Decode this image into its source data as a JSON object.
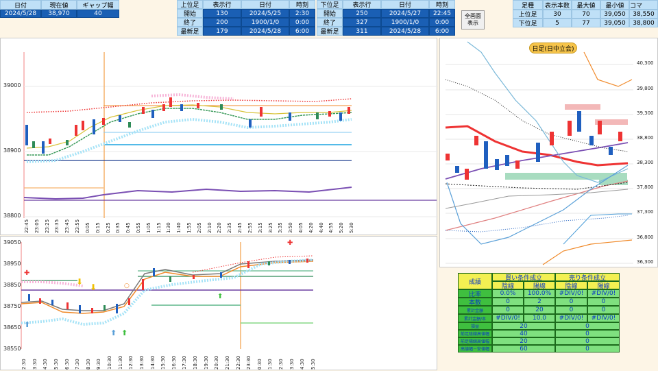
{
  "top_left": {
    "headers": [
      "日付",
      "現在値",
      "ギャップ幅"
    ],
    "values": [
      "2024/5/28",
      "38,970",
      "40"
    ]
  },
  "upper_table": {
    "headers": [
      "上位足",
      "表示行",
      "日付",
      "時刻"
    ],
    "rows": [
      [
        "開始",
        "130",
        "2024/5/25",
        "2:30"
      ],
      [
        "終了",
        "200",
        "1900/1/0",
        "0:00"
      ],
      [
        "最新足",
        "179",
        "2024/5/28",
        "6:00"
      ]
    ]
  },
  "lower_table": {
    "headers": [
      "下位足",
      "表示行",
      "日付",
      "時刻"
    ],
    "rows": [
      [
        "開始",
        "250",
        "2024/5/27",
        "22:45"
      ],
      [
        "終了",
        "327",
        "1900/1/0",
        "0:00"
      ],
      [
        "最新足",
        "311",
        "2024/5/28",
        "6:00"
      ]
    ]
  },
  "full_button": {
    "line1": "全画面",
    "line2": "表示"
  },
  "right_table": {
    "headers": [
      "足種",
      "表示本数",
      "最大値",
      "最小値",
      "コマ"
    ],
    "rows": [
      [
        "上位足",
        "30",
        "70",
        "39,050",
        "38,550"
      ],
      [
        "下位足",
        "5",
        "77",
        "39,050",
        "38,800"
      ]
    ]
  },
  "top_chart": {
    "y_ticks": [
      "39000",
      "38900",
      "38800"
    ],
    "x_ticks": [
      "22:45",
      "23:05",
      "23:25",
      "23:35",
      "23:45",
      "23:55",
      "0:05",
      "0:15",
      "0:25",
      "0:35",
      "0:45",
      "0:55",
      "1:05",
      "1:15",
      "1:30",
      "1:40",
      "1:55",
      "2:05",
      "2:10",
      "2:20",
      "2:35",
      "2:45",
      "2:55",
      "3:15",
      "3:25",
      "3:35",
      "3:50",
      "4:05",
      "4:20",
      "4:40",
      "4:55",
      "5:20",
      "5:30"
    ]
  },
  "bottom_chart": {
    "y_ticks": [
      "39050",
      "38950",
      "38850",
      "38750",
      "38650",
      "38550"
    ],
    "x_ticks": [
      "2:30",
      "3:30",
      "4:30",
      "5:30",
      "6:30",
      "7:30",
      "8:30",
      "9:30",
      "10:30",
      "11:30",
      "12:30",
      "13:30",
      "14:30",
      "15:30",
      "16:30",
      "17:30",
      "18:30",
      "19:30",
      "20:30",
      "21:30",
      "22:30",
      "23:30",
      "0:30",
      "1:30",
      "2:30",
      "3:30",
      "4:30",
      "5:30"
    ]
  },
  "daily_chart": {
    "title": "日足(日中立会)",
    "y_ticks": [
      "40,300",
      "39,800",
      "39,300",
      "38,800",
      "38,300",
      "37,800",
      "37,300",
      "36,800",
      "36,300"
    ]
  },
  "stats": {
    "title": "成績",
    "buy_header": "買い条件成立",
    "sell_header": "売り条件成立",
    "sub": [
      "陰線",
      "陽線",
      "陰線",
      "陽線"
    ],
    "rows": [
      {
        "label": "比率",
        "vals": [
          "0.0%",
          "100.0%",
          "#DIV/0!",
          "#DIV/0!"
        ]
      },
      {
        "label": "本数",
        "vals": [
          "0",
          "2",
          "0",
          "0"
        ]
      },
      {
        "label": "累計金額",
        "vals": [
          "0",
          "20",
          "0",
          "0"
        ]
      },
      {
        "label": "累計金額/本",
        "vals": [
          "#DIV/0!",
          "10.0",
          "#DIV/0!",
          "#DIV/0!"
        ]
      }
    ],
    "rows2": [
      {
        "label": "損益",
        "buy": "20",
        "sell": "0"
      },
      {
        "label": "前足陰線高値幅",
        "buy": "40",
        "sell": "0"
      },
      {
        "label": "前足陽線高値幅",
        "buy": "20",
        "sell": "0"
      },
      {
        "label": "高値幅－安値幅",
        "buy": "60",
        "sell": "0"
      }
    ]
  },
  "colors": {
    "header_bg": "#bfe0f7",
    "value_bg": "#1a5fb4",
    "stats_green": "#3fbf3f",
    "stats_yellow": "#f3f052"
  }
}
